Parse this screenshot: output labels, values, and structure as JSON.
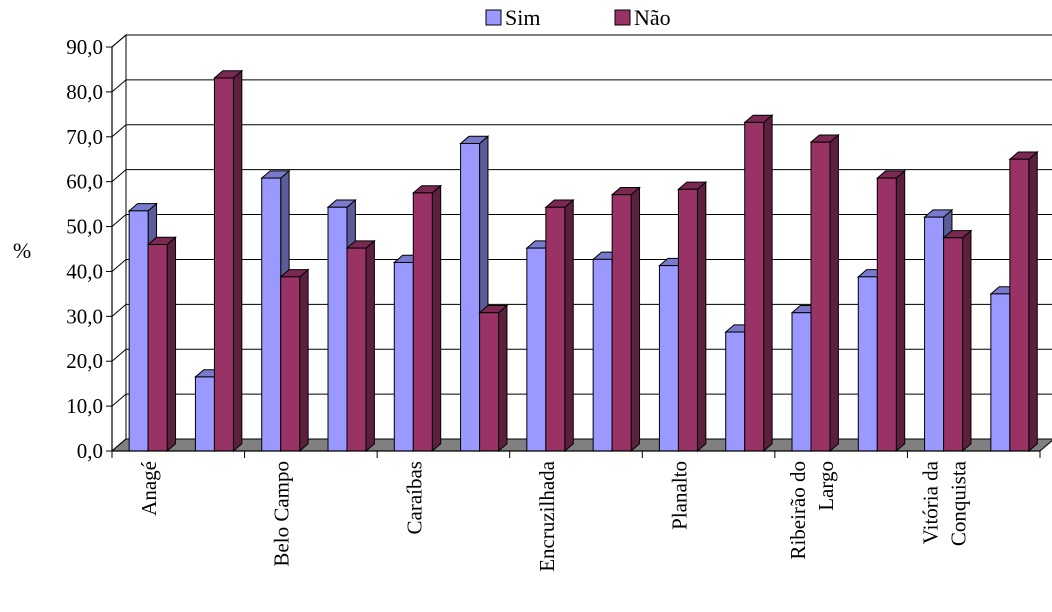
{
  "chart_data": {
    "type": "bar",
    "ylabel": "%",
    "ylim": [
      0,
      90
    ],
    "ytick_labels": [
      "0,0",
      "10,0",
      "20,0",
      "30,0",
      "40,0",
      "50,0",
      "60,0",
      "70,0",
      "80,0",
      "90,0"
    ],
    "ytick_values": [
      0,
      10,
      20,
      30,
      40,
      50,
      60,
      70,
      80,
      90
    ],
    "grid": true,
    "legend_position": "top-center",
    "categories": [
      "Anagé",
      "",
      "Belo Campo",
      "",
      "Caraíbas",
      "",
      "Encruzilhada",
      "",
      "Planalto",
      "",
      "Ribeirão do Largo",
      "",
      "Vitória da Conquista",
      ""
    ],
    "category_label_lines": [
      [
        "Anagé"
      ],
      [],
      [
        "Belo Campo"
      ],
      [],
      [
        "Caraíbas"
      ],
      [],
      [
        "Encruzilhada"
      ],
      [],
      [
        "Planalto"
      ],
      [],
      [
        "Ribeirão do",
        "Largo"
      ],
      [],
      [
        "Vitória da",
        "Conquista"
      ],
      []
    ],
    "series": [
      {
        "name": "Sim",
        "color": "#9999ff",
        "values": [
          53.5,
          16.5,
          60.8,
          54.3,
          42.0,
          68.5,
          45.2,
          42.7,
          41.3,
          26.5,
          30.8,
          38.8,
          52.1,
          35.0
        ]
      },
      {
        "name": "Não",
        "color": "#993366",
        "values": [
          46.0,
          83.1,
          38.8,
          45.2,
          57.5,
          30.8,
          54.3,
          57.1,
          58.3,
          73.2,
          68.8,
          60.8,
          47.5,
          65.0
        ]
      }
    ]
  }
}
